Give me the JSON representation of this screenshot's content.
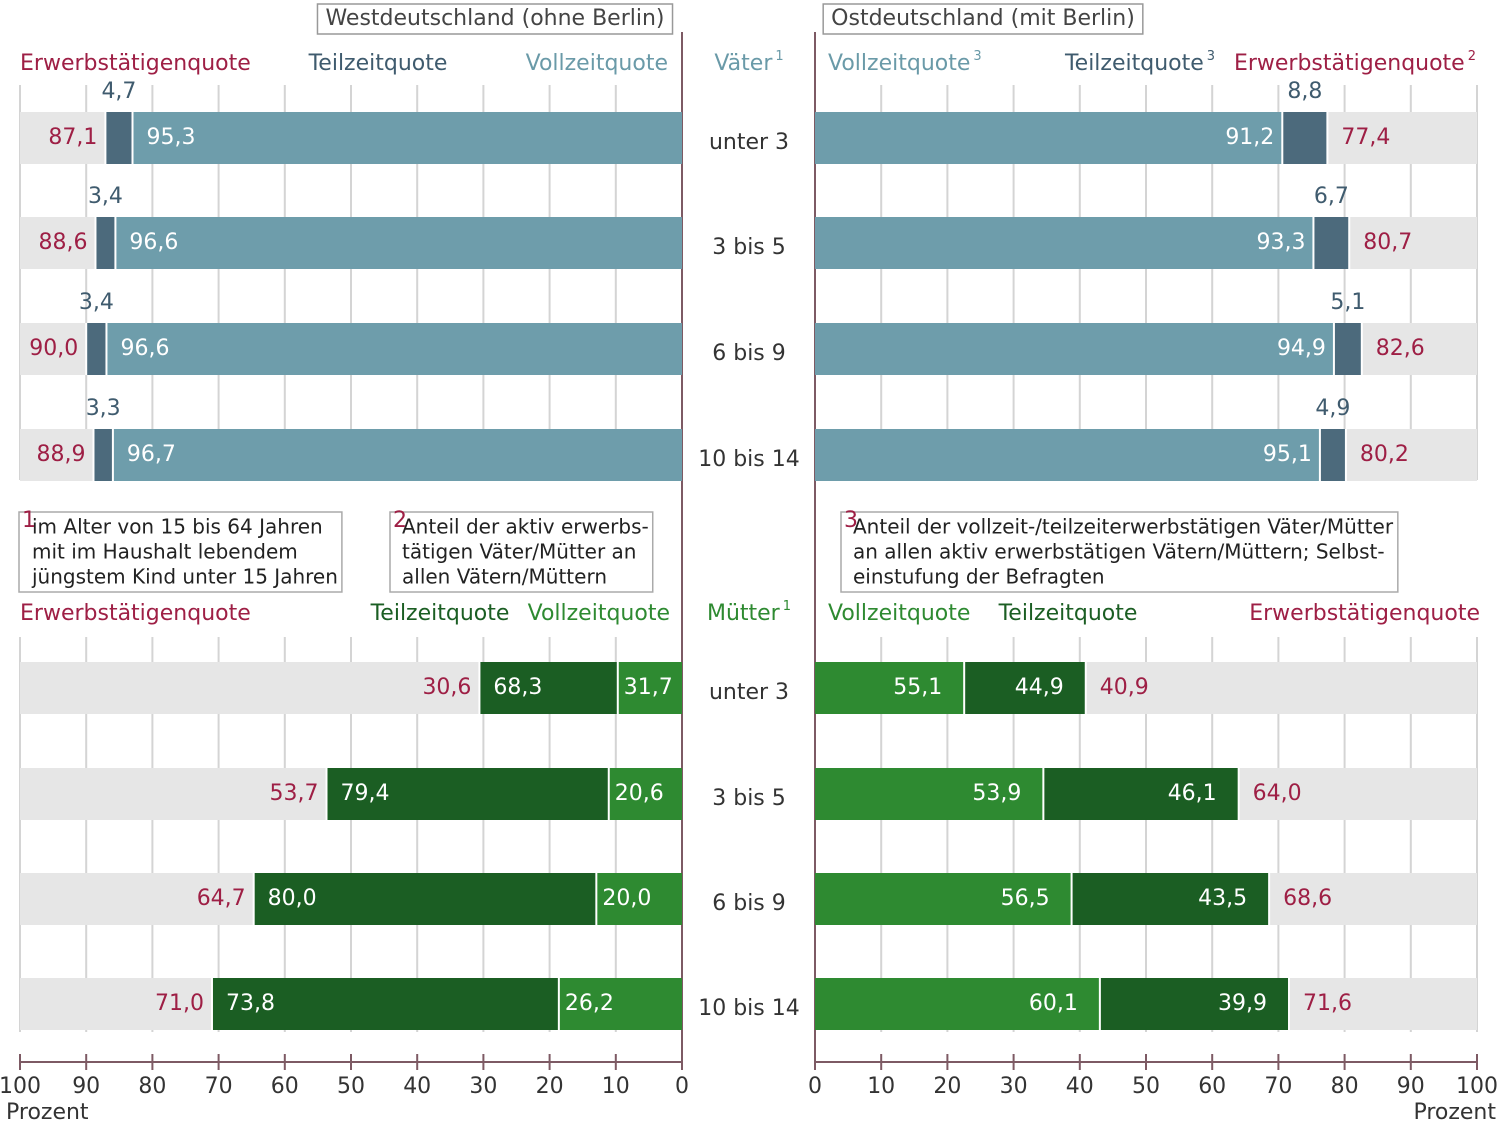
{
  "chart_data": {
    "type": "bar",
    "regions": [
      "Westdeutschland (ohne Berlin)",
      "Ostdeutschland (mit Berlin)"
    ],
    "categories": [
      "unter 3",
      "3 bis 5",
      "6 bis 9",
      "10 bis 14"
    ],
    "groups": [
      {
        "name": "Väter",
        "note": "1",
        "panels": [
          {
            "series": [
              {
                "name": "Erwerbstätigenquote",
                "color": "#9e1f45",
                "values": [
                  87.1,
                  88.6,
                  90.0,
                  88.9
                ],
                "value_labels": [
                  "87,1",
                  "88,6",
                  "90,0",
                  "88,9"
                ]
              },
              {
                "name": "Teilzeitquote",
                "color": "#4c6a7c",
                "values": [
                  4.7,
                  3.4,
                  3.4,
                  3.3
                ],
                "value_labels": [
                  "4,7",
                  "3,4",
                  "3,4",
                  "3,3"
                ]
              },
              {
                "name": "Vollzeitquote",
                "color": "#6e9dab",
                "values": [
                  95.3,
                  96.6,
                  96.6,
                  96.7
                ],
                "value_labels": [
                  "95,3",
                  "96,6",
                  "96,6",
                  "96,7"
                ]
              }
            ]
          },
          {
            "series": [
              {
                "name": "Erwerbstätigenquote",
                "note": "2",
                "color": "#9e1f45",
                "values": [
                  77.4,
                  80.7,
                  82.6,
                  80.2
                ],
                "value_labels": [
                  "77,4",
                  "80,7",
                  "82,6",
                  "80,2"
                ]
              },
              {
                "name": "Teilzeitquote",
                "note": "3",
                "color": "#4c6a7c",
                "values": [
                  8.8,
                  6.7,
                  5.1,
                  4.9
                ],
                "value_labels": [
                  "8,8",
                  "6,7",
                  "5,1",
                  "4,9"
                ]
              },
              {
                "name": "Vollzeitquote",
                "note": "3",
                "color": "#6e9dab",
                "values": [
                  91.2,
                  93.3,
                  94.9,
                  95.1
                ],
                "value_labels": [
                  "91,2",
                  "93,3",
                  "94,9",
                  "95,1"
                ]
              }
            ]
          }
        ]
      },
      {
        "name": "Mütter",
        "note": "1",
        "panels": [
          {
            "series": [
              {
                "name": "Erwerbstätigenquote",
                "color": "#9e1f45",
                "values": [
                  30.6,
                  53.7,
                  64.7,
                  71.0
                ],
                "value_labels": [
                  "30,6",
                  "53,7",
                  "64,7",
                  "71,0"
                ]
              },
              {
                "name": "Teilzeitquote",
                "color": "#1b5e23",
                "values": [
                  68.3,
                  79.4,
                  80.0,
                  73.8
                ],
                "value_labels": [
                  "68,3",
                  "79,4",
                  "80,0",
                  "73,8"
                ]
              },
              {
                "name": "Vollzeitquote",
                "color": "#2e8a31",
                "values": [
                  31.7,
                  20.6,
                  20.0,
                  26.2
                ],
                "value_labels": [
                  "31,7",
                  "20,6",
                  "20,0",
                  "26,2"
                ]
              }
            ]
          },
          {
            "series": [
              {
                "name": "Erwerbstätigenquote",
                "color": "#9e1f45",
                "values": [
                  40.9,
                  64.0,
                  68.6,
                  71.6
                ],
                "value_labels": [
                  "40,9",
                  "64,0",
                  "68,6",
                  "71,6"
                ]
              },
              {
                "name": "Teilzeitquote",
                "color": "#1b5e23",
                "values": [
                  44.9,
                  46.1,
                  43.5,
                  39.9
                ],
                "value_labels": [
                  "44,9",
                  "46,1",
                  "43,5",
                  "39,9"
                ]
              },
              {
                "name": "Vollzeitquote",
                "color": "#2e8a31",
                "values": [
                  55.1,
                  53.9,
                  56.5,
                  60.1
                ],
                "value_labels": [
                  "55,1",
                  "53,9",
                  "56,5",
                  "60,1"
                ]
              }
            ]
          }
        ]
      }
    ],
    "footnotes": [
      {
        "mark": "1",
        "lines": [
          "im Alter von 15 bis 64 Jahren",
          "mit im Haushalt lebendem",
          "jüngstem Kind unter 15 Jahren"
        ]
      },
      {
        "mark": "2",
        "lines": [
          "Anteil der aktiv erwerbs-",
          "tätigen Väter/Mütter an",
          "allen Vätern/Müttern"
        ]
      },
      {
        "mark": "3",
        "lines": [
          "Anteil der vollzeit-/teilzeiterwerbstätigen Väter/Mütter",
          "an allen aktiv erwerbstätigen Vätern/Müttern; Selbst-",
          "einstufung der Befragten"
        ]
      }
    ],
    "xlabel": "Prozent",
    "xlim": [
      0,
      100
    ],
    "xticks": [
      0,
      10,
      20,
      30,
      40,
      50,
      60,
      70,
      80,
      90,
      100
    ],
    "grid": true
  }
}
